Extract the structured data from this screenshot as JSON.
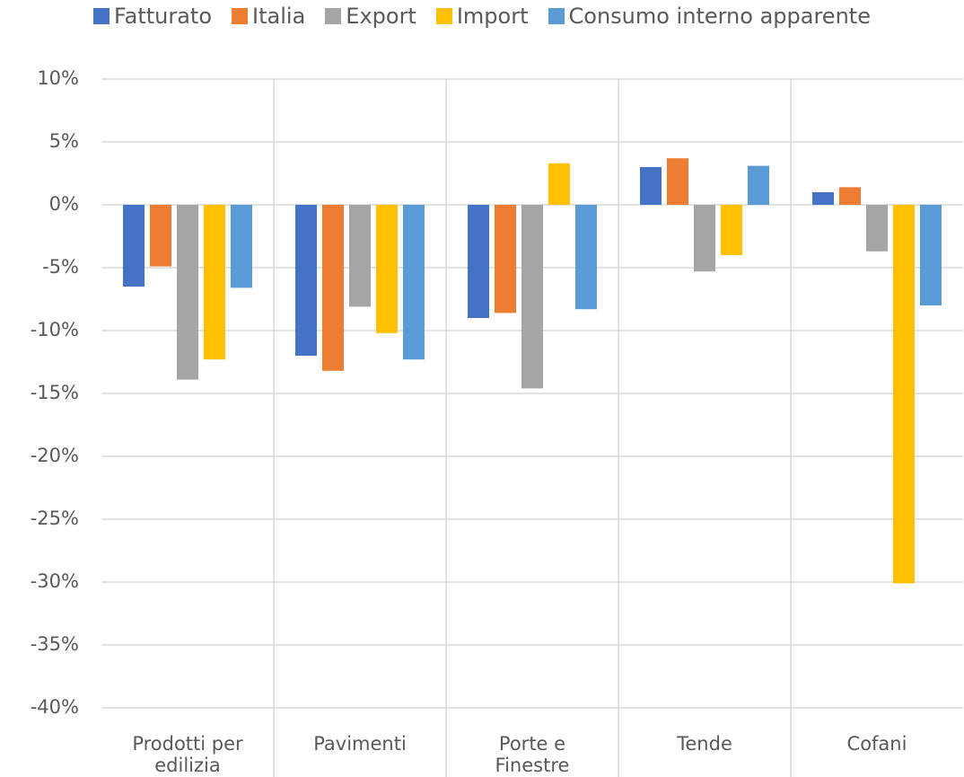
{
  "chart_data": {
    "type": "bar",
    "categories": [
      "Prodotti per edilizia",
      "Pavimenti",
      "Porte e Finestre",
      "Tende",
      "Cofani"
    ],
    "series": [
      {
        "name": "Fatturato",
        "color": "#4472c4",
        "values": [
          -6.5,
          -12.0,
          -9.0,
          3.0,
          1.0
        ]
      },
      {
        "name": "Italia",
        "color": "#ed7d31",
        "values": [
          -4.9,
          -13.2,
          -8.6,
          3.7,
          1.4
        ]
      },
      {
        "name": "Export",
        "color": "#a5a5a5",
        "values": [
          -13.9,
          -8.1,
          -14.6,
          -5.3,
          -3.7
        ]
      },
      {
        "name": "Import",
        "color": "#ffc000",
        "values": [
          -12.3,
          -10.2,
          3.3,
          -4.0,
          -30.1
        ]
      },
      {
        "name": "Consumo interno apparente",
        "color": "#5b9bd5",
        "values": [
          -6.6,
          -12.3,
          -8.3,
          3.1,
          -8.0
        ]
      }
    ],
    "ylim": [
      -40,
      10
    ],
    "yticks": [
      {
        "value": 10,
        "label": "10%"
      },
      {
        "value": 5,
        "label": "5%"
      },
      {
        "value": 0,
        "label": "0%"
      },
      {
        "value": -5,
        "label": "-5%"
      },
      {
        "value": -10,
        "label": "-10%"
      },
      {
        "value": -15,
        "label": "-15%"
      },
      {
        "value": -20,
        "label": "-20%"
      },
      {
        "value": -25,
        "label": "-25%"
      },
      {
        "value": -30,
        "label": "-30%"
      },
      {
        "value": -35,
        "label": "-35%"
      },
      {
        "value": -40,
        "label": "-40%"
      }
    ],
    "grid": true,
    "legend": "top"
  }
}
